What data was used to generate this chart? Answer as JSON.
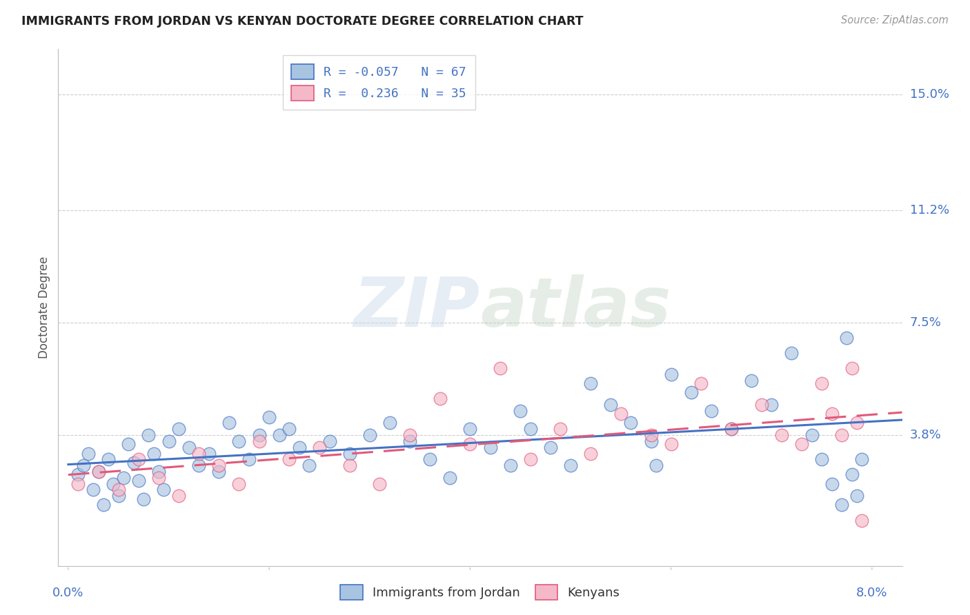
{
  "title": "IMMIGRANTS FROM JORDAN VS KENYAN DOCTORATE DEGREE CORRELATION CHART",
  "source": "Source: ZipAtlas.com",
  "ylabel": "Doctorate Degree",
  "ytick_labels": [
    "15.0%",
    "11.2%",
    "7.5%",
    "3.8%"
  ],
  "ytick_values": [
    15.0,
    11.2,
    7.5,
    3.8
  ],
  "xtick_labels": [
    "0.0%",
    "8.0%"
  ],
  "xtick_values": [
    0.0,
    8.0
  ],
  "xlim": [
    -0.1,
    8.3
  ],
  "ylim": [
    -0.5,
    16.5
  ],
  "r_jordan": -0.057,
  "n_jordan": 67,
  "r_kenyan": 0.236,
  "n_kenyan": 35,
  "color_jordan": "#a8c4e0",
  "color_kenyan": "#f4b8c8",
  "line_color_jordan": "#4472c4",
  "line_color_kenyan": "#e05a7a",
  "jordan_x": [
    0.1,
    0.15,
    0.2,
    0.25,
    0.3,
    0.35,
    0.4,
    0.45,
    0.5,
    0.55,
    0.6,
    0.65,
    0.7,
    0.75,
    0.8,
    0.85,
    0.9,
    0.95,
    1.0,
    1.1,
    1.2,
    1.3,
    1.4,
    1.5,
    1.6,
    1.7,
    1.8,
    1.9,
    2.0,
    2.1,
    2.2,
    2.3,
    2.4,
    2.6,
    2.8,
    3.0,
    3.2,
    3.4,
    3.6,
    3.8,
    4.0,
    4.2,
    4.4,
    4.5,
    4.6,
    4.8,
    5.0,
    5.2,
    5.4,
    5.6,
    5.8,
    5.85,
    6.0,
    6.2,
    6.4,
    6.6,
    6.8,
    7.0,
    7.2,
    7.4,
    7.5,
    7.6,
    7.7,
    7.75,
    7.8,
    7.85,
    7.9
  ],
  "jordan_y": [
    2.5,
    2.8,
    3.2,
    2.0,
    2.6,
    1.5,
    3.0,
    2.2,
    1.8,
    2.4,
    3.5,
    2.9,
    2.3,
    1.7,
    3.8,
    3.2,
    2.6,
    2.0,
    3.6,
    4.0,
    3.4,
    2.8,
    3.2,
    2.6,
    4.2,
    3.6,
    3.0,
    3.8,
    4.4,
    3.8,
    4.0,
    3.4,
    2.8,
    3.6,
    3.2,
    3.8,
    4.2,
    3.6,
    3.0,
    2.4,
    4.0,
    3.4,
    2.8,
    4.6,
    4.0,
    3.4,
    2.8,
    5.5,
    4.8,
    4.2,
    3.6,
    2.8,
    5.8,
    5.2,
    4.6,
    4.0,
    5.6,
    4.8,
    6.5,
    3.8,
    3.0,
    2.2,
    1.5,
    7.0,
    2.5,
    1.8,
    3.0
  ],
  "kenyan_x": [
    0.1,
    0.3,
    0.5,
    0.7,
    0.9,
    1.1,
    1.3,
    1.5,
    1.7,
    1.9,
    2.2,
    2.5,
    2.8,
    3.1,
    3.4,
    3.7,
    4.0,
    4.3,
    4.6,
    4.9,
    5.2,
    5.5,
    5.8,
    6.0,
    6.3,
    6.6,
    6.9,
    7.1,
    7.3,
    7.5,
    7.6,
    7.7,
    7.8,
    7.85,
    7.9
  ],
  "kenyan_y": [
    2.2,
    2.6,
    2.0,
    3.0,
    2.4,
    1.8,
    3.2,
    2.8,
    2.2,
    3.6,
    3.0,
    3.4,
    2.8,
    2.2,
    3.8,
    5.0,
    3.5,
    6.0,
    3.0,
    4.0,
    3.2,
    4.5,
    3.8,
    3.5,
    5.5,
    4.0,
    4.8,
    3.8,
    3.5,
    5.5,
    4.5,
    3.8,
    6.0,
    4.2,
    1.0
  ],
  "watermark_zip": "ZIP",
  "watermark_atlas": "atlas",
  "background_color": "#ffffff",
  "grid_color": "#cccccc",
  "legend1_label": "R = -0.057   N = 67",
  "legend2_label": "R =  0.236   N = 35",
  "bottom_legend1": "Immigrants from Jordan",
  "bottom_legend2": "Kenyans"
}
